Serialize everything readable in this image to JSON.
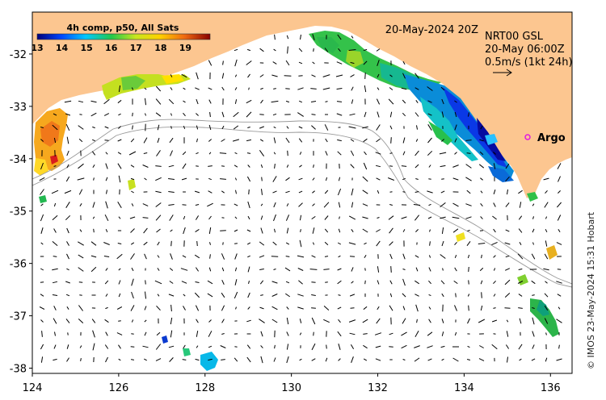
{
  "map": {
    "date_label": "20-May-2024 20Z",
    "product": "NRT00 GSL",
    "time": "20-May 06:00Z",
    "scale_label": "0.5m/s (1kt 24h)",
    "argo_label": "Argo",
    "credit": "© IMOS 23-May-2024 15:31 Hobart",
    "x_ticks": [
      "124",
      "126",
      "128",
      "130",
      "132",
      "134",
      "136"
    ],
    "y_ticks": [
      "-32",
      "-33",
      "-34",
      "-35",
      "-36",
      "-37",
      "-38"
    ],
    "lon_range": [
      124,
      136.5
    ],
    "lat_range": [
      -31.2,
      -38.1
    ],
    "colors": {
      "land": "#fcc690",
      "ocean": "#ffffff",
      "argo": "#e01ae0",
      "bathy": "#9a9a9a"
    }
  },
  "colorbar": {
    "title": "4h comp, p50, All Sats",
    "ticks": [
      "13",
      "14",
      "15",
      "16",
      "17",
      "18",
      "19"
    ],
    "range": [
      13,
      20
    ]
  }
}
